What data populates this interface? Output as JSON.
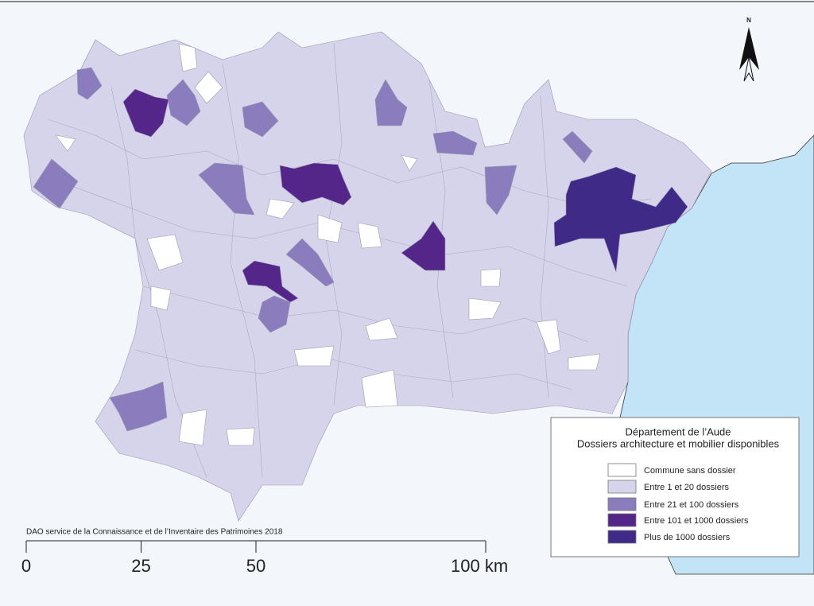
{
  "north": "N",
  "legend": {
    "title": [
      "Département de l’Aude",
      "Dossiers architecture et mobilier disponibles"
    ],
    "items": [
      {
        "label": "Commune sans dossier",
        "color": "#ffffff"
      },
      {
        "label": "Entre 1 et 20 dossiers",
        "color": "#d5d4ea"
      },
      {
        "label": "Entre 21 et 100 dossiers",
        "color": "#8a7cbd"
      },
      {
        "label": "Entre 101 et 1000 dossiers",
        "color": "#55268a"
      },
      {
        "label": "Plus de 1000 dossiers",
        "color": "#3f2a88"
      }
    ]
  },
  "credit": "DAO service de la Connaissance et de l’Inventaire des Patrimoines 2018",
  "scale_bar": {
    "ticks": [
      {
        "value": 0,
        "label": "0"
      },
      {
        "value": 25,
        "label": "25"
      },
      {
        "value": 50,
        "label": "50"
      },
      {
        "value": 100,
        "label": "100 km"
      }
    ]
  }
}
